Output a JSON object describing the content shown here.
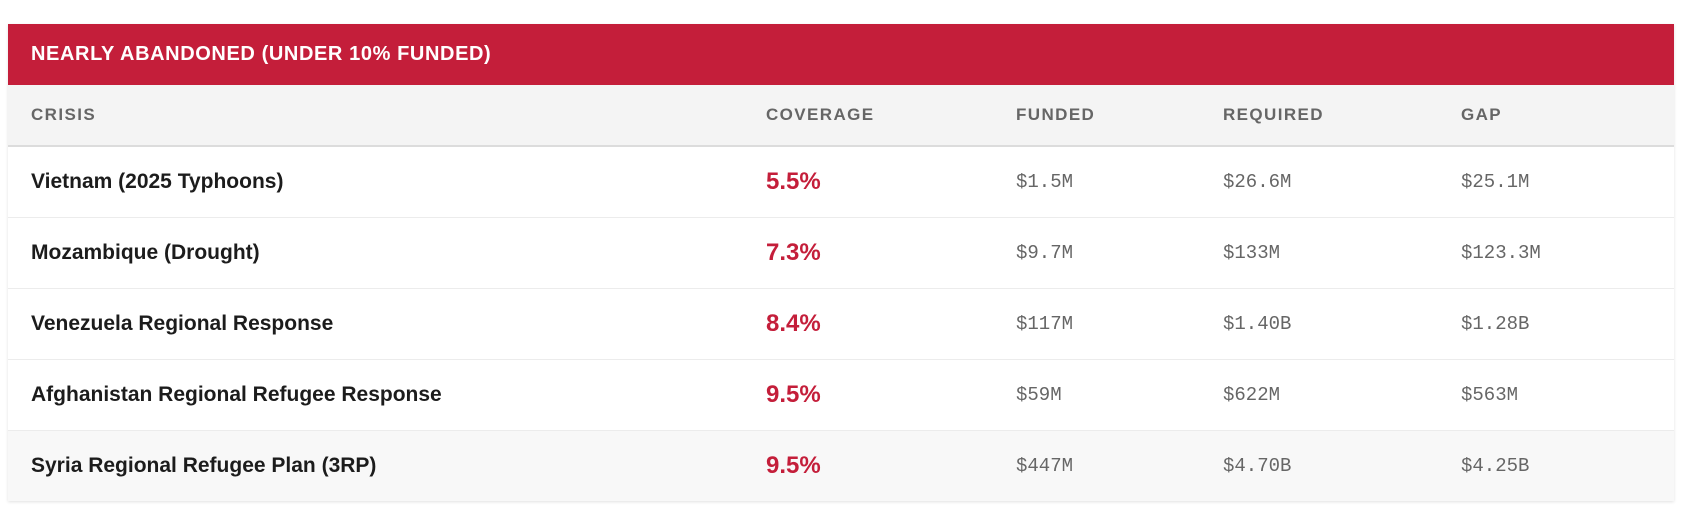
{
  "panel": {
    "title": "NEARLY ABANDONED (UNDER 10% FUNDED)"
  },
  "table": {
    "headers": {
      "crisis": "CRISIS",
      "coverage": "COVERAGE",
      "funded": "FUNDED",
      "required": "REQUIRED",
      "gap": "GAP"
    },
    "rows": [
      {
        "crisis": "Vietnam (2025 Typhoons)",
        "coverage": "5.5%",
        "funded": "$1.5M",
        "required": "$26.6M",
        "gap": "$25.1M"
      },
      {
        "crisis": "Mozambique (Drought)",
        "coverage": "7.3%",
        "funded": "$9.7M",
        "required": "$133M",
        "gap": "$123.3M"
      },
      {
        "crisis": "Venezuela Regional Response",
        "coverage": "8.4%",
        "funded": "$117M",
        "required": "$1.40B",
        "gap": "$1.28B"
      },
      {
        "crisis": "Afghanistan Regional Refugee Response",
        "coverage": "9.5%",
        "funded": "$59M",
        "required": "$622M",
        "gap": "$563M"
      },
      {
        "crisis": "Syria Regional Refugee Plan (3RP)",
        "coverage": "9.5%",
        "funded": "$447M",
        "required": "$4.70B",
        "gap": "$4.25B"
      }
    ]
  },
  "colors": {
    "header_bg": "#c41e3a",
    "coverage_text": "#c41e3a",
    "column_header_bg": "#f4f4f4"
  }
}
